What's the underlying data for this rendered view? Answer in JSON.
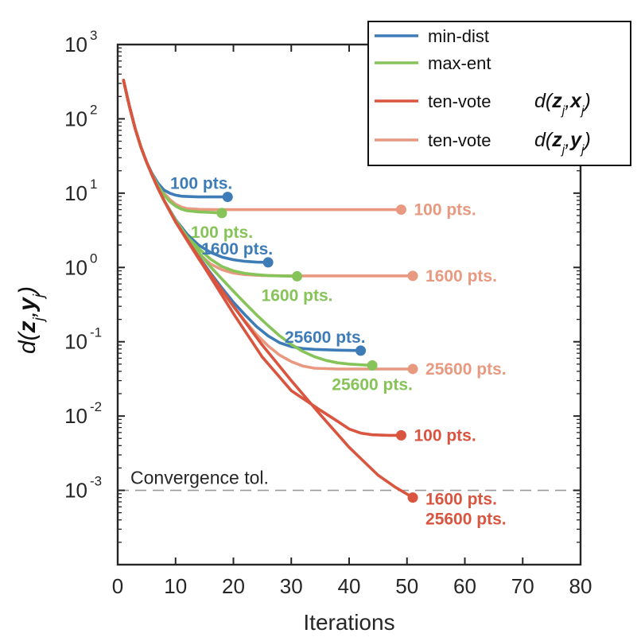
{
  "chart_data": {
    "type": "line",
    "xlabel": "Iterations",
    "ylabel": {
      "prefix": "d(",
      "var1": "z",
      "sub1": "j",
      "sep": ",",
      "var2": "y",
      "sub2": "j",
      "suffix": ")"
    },
    "xlim": [
      0,
      80
    ],
    "ylim_log10": [
      -4,
      3
    ],
    "yscale": "log",
    "xticks": [
      "0",
      "10",
      "20",
      "30",
      "40",
      "50",
      "60",
      "70",
      "80"
    ],
    "yticks": [
      {
        "base": "10",
        "exp": "3",
        "value": 3
      },
      {
        "base": "10",
        "exp": "2",
        "value": 2
      },
      {
        "base": "10",
        "exp": "1",
        "value": 1
      },
      {
        "base": "10",
        "exp": "0",
        "value": 0
      },
      {
        "base": "10",
        "exp": "-1",
        "value": -1
      },
      {
        "base": "10",
        "exp": "-2",
        "value": -2
      },
      {
        "base": "10",
        "exp": "-3",
        "value": -3
      }
    ],
    "convergence_tol": {
      "label": "Convergence tol.",
      "value": 0.001
    },
    "colors": {
      "min_dist": "#3E7CB8",
      "max_ent": "#86C358",
      "ten_vote_x": "#D9553F",
      "ten_vote_y": "#E89980",
      "axis": "#262626",
      "tol": "#999999"
    },
    "legend": {
      "position": "top-right",
      "entries": [
        {
          "label": "min-dist",
          "color_key": "min_dist"
        },
        {
          "label": "max-ent",
          "color_key": "max_ent"
        },
        {
          "label": "ten-vote",
          "color_key": "ten_vote_x",
          "math": {
            "prefix": "d(",
            "var1": "z",
            "sub1": "j",
            "sep": ",",
            "var2": "x",
            "sub2": "j",
            "suffix": ")"
          }
        },
        {
          "label": "ten-vote",
          "color_key": "ten_vote_y",
          "math": {
            "prefix": "d(",
            "var1": "z",
            "sub1": "j",
            "sep": ",",
            "var2": "y",
            "sub2": "j",
            "suffix": ")"
          }
        }
      ]
    },
    "series": [
      {
        "name": "min-dist 100 pts.",
        "color_key": "min_dist",
        "label": "100 pts.",
        "label_side": "above",
        "points": [
          [
            1,
            330
          ],
          [
            2,
            150
          ],
          [
            3,
            75
          ],
          [
            4,
            42
          ],
          [
            5,
            26
          ],
          [
            6,
            18
          ],
          [
            7,
            13.5
          ],
          [
            8,
            11
          ],
          [
            9,
            10
          ],
          [
            10,
            9.4
          ],
          [
            11,
            9.1
          ],
          [
            12,
            9
          ],
          [
            14,
            8.9
          ],
          [
            17,
            8.9
          ],
          [
            19,
            8.9
          ]
        ]
      },
      {
        "name": "max-ent 100 pts.",
        "color_key": "max_ent",
        "label": "100 pts.",
        "label_side": "below",
        "points": [
          [
            1,
            330
          ],
          [
            2,
            150
          ],
          [
            3,
            75
          ],
          [
            4,
            42
          ],
          [
            5,
            26
          ],
          [
            6,
            17.5
          ],
          [
            7,
            12.5
          ],
          [
            8,
            9.5
          ],
          [
            9,
            7.7
          ],
          [
            10,
            6.7
          ],
          [
            11,
            6.1
          ],
          [
            12,
            5.8
          ],
          [
            14,
            5.6
          ],
          [
            16,
            5.5
          ],
          [
            18,
            5.4
          ]
        ]
      },
      {
        "name": "ten-vote y 100 pts.",
        "color_key": "ten_vote_y",
        "label": "100 pts.",
        "label_side": "right",
        "points": [
          [
            1,
            330
          ],
          [
            2,
            150
          ],
          [
            3,
            75
          ],
          [
            4,
            42
          ],
          [
            5,
            26
          ],
          [
            6,
            17.5
          ],
          [
            7,
            13
          ],
          [
            8,
            10
          ],
          [
            9,
            8.2
          ],
          [
            10,
            7.1
          ],
          [
            11,
            6.5
          ],
          [
            12,
            6.2
          ],
          [
            14,
            6.05
          ],
          [
            17,
            6
          ],
          [
            25,
            6
          ],
          [
            35,
            6
          ],
          [
            45,
            6
          ],
          [
            49,
            6
          ]
        ]
      },
      {
        "name": "min-dist 1600 pts.",
        "color_key": "min_dist",
        "label": "1600 pts.",
        "label_side": "above",
        "points": [
          [
            1,
            330
          ],
          [
            2,
            150
          ],
          [
            3,
            75
          ],
          [
            4,
            42
          ],
          [
            5,
            26
          ],
          [
            6,
            17
          ],
          [
            7,
            11.5
          ],
          [
            8,
            8
          ],
          [
            10,
            4.4
          ],
          [
            12,
            2.8
          ],
          [
            14,
            2
          ],
          [
            16,
            1.6
          ],
          [
            18,
            1.38
          ],
          [
            20,
            1.27
          ],
          [
            22,
            1.21
          ],
          [
            24,
            1.18
          ],
          [
            26,
            1.17
          ]
        ]
      },
      {
        "name": "max-ent 1600 pts.",
        "color_key": "max_ent",
        "label": "1600 pts.",
        "label_side": "below",
        "points": [
          [
            1,
            330
          ],
          [
            2,
            150
          ],
          [
            3,
            75
          ],
          [
            4,
            42
          ],
          [
            5,
            26
          ],
          [
            6,
            17
          ],
          [
            7,
            11.5
          ],
          [
            8,
            8
          ],
          [
            10,
            4.3
          ],
          [
            12,
            2.6
          ],
          [
            14,
            1.8
          ],
          [
            16,
            1.3
          ],
          [
            18,
            1.03
          ],
          [
            20,
            0.9
          ],
          [
            22,
            0.83
          ],
          [
            24,
            0.8
          ],
          [
            26,
            0.78
          ],
          [
            28,
            0.77
          ],
          [
            31,
            0.76
          ]
        ]
      },
      {
        "name": "ten-vote y 1600 pts.",
        "color_key": "ten_vote_y",
        "label": "1600 pts.",
        "label_side": "right",
        "points": [
          [
            1,
            330
          ],
          [
            2,
            150
          ],
          [
            3,
            75
          ],
          [
            4,
            42
          ],
          [
            5,
            26
          ],
          [
            6,
            17
          ],
          [
            7,
            11.5
          ],
          [
            8,
            8
          ],
          [
            10,
            4.2
          ],
          [
            12,
            2.5
          ],
          [
            14,
            1.55
          ],
          [
            16,
            1.12
          ],
          [
            18,
            0.93
          ],
          [
            20,
            0.84
          ],
          [
            22,
            0.8
          ],
          [
            25,
            0.78
          ],
          [
            30,
            0.77
          ],
          [
            40,
            0.77
          ],
          [
            51,
            0.77
          ]
        ]
      },
      {
        "name": "min-dist 25600 pts.",
        "color_key": "min_dist",
        "label": "25600 pts.",
        "label_side": "above",
        "points": [
          [
            1,
            330
          ],
          [
            2,
            150
          ],
          [
            3,
            75
          ],
          [
            4,
            42
          ],
          [
            5,
            26
          ],
          [
            6,
            17
          ],
          [
            7,
            11.5
          ],
          [
            8,
            8
          ],
          [
            10,
            4.2
          ],
          [
            12,
            2.4
          ],
          [
            14,
            1.4
          ],
          [
            16,
            0.85
          ],
          [
            18,
            0.53
          ],
          [
            20,
            0.34
          ],
          [
            22,
            0.23
          ],
          [
            24,
            0.16
          ],
          [
            26,
            0.12
          ],
          [
            28,
            0.097
          ],
          [
            30,
            0.086
          ],
          [
            32,
            0.081
          ],
          [
            34,
            0.079
          ],
          [
            38,
            0.077
          ],
          [
            42,
            0.076
          ]
        ]
      },
      {
        "name": "max-ent 25600 pts.",
        "color_key": "max_ent",
        "label": "25600 pts.",
        "label_side": "below",
        "points": [
          [
            1,
            330
          ],
          [
            2,
            150
          ],
          [
            3,
            75
          ],
          [
            4,
            42
          ],
          [
            5,
            26
          ],
          [
            6,
            17
          ],
          [
            7,
            11.5
          ],
          [
            8,
            8
          ],
          [
            10,
            4.3
          ],
          [
            12,
            2.6
          ],
          [
            14,
            1.6
          ],
          [
            16,
            1.03
          ],
          [
            18,
            0.7
          ],
          [
            20,
            0.48
          ],
          [
            22,
            0.33
          ],
          [
            24,
            0.23
          ],
          [
            26,
            0.165
          ],
          [
            28,
            0.12
          ],
          [
            30,
            0.092
          ],
          [
            32,
            0.074
          ],
          [
            34,
            0.063
          ],
          [
            36,
            0.056
          ],
          [
            38,
            0.052
          ],
          [
            40,
            0.05
          ],
          [
            44,
            0.048
          ]
        ]
      },
      {
        "name": "ten-vote y 25600 pts.",
        "color_key": "ten_vote_y",
        "label": "25600 pts.",
        "label_side": "right",
        "points": [
          [
            1,
            330
          ],
          [
            2,
            150
          ],
          [
            3,
            75
          ],
          [
            4,
            42
          ],
          [
            5,
            26
          ],
          [
            6,
            17
          ],
          [
            7,
            11.5
          ],
          [
            8,
            8
          ],
          [
            10,
            4.1
          ],
          [
            12,
            2.3
          ],
          [
            14,
            1.3
          ],
          [
            16,
            0.78
          ],
          [
            18,
            0.48
          ],
          [
            20,
            0.3
          ],
          [
            22,
            0.19
          ],
          [
            24,
            0.125
          ],
          [
            26,
            0.088
          ],
          [
            28,
            0.066
          ],
          [
            30,
            0.054
          ],
          [
            32,
            0.047
          ],
          [
            34,
            0.044
          ],
          [
            38,
            0.043
          ],
          [
            45,
            0.043
          ],
          [
            51,
            0.043
          ]
        ]
      },
      {
        "name": "ten-vote x 100 pts.",
        "color_key": "ten_vote_x",
        "label": "100 pts.",
        "label_side": "right",
        "points": [
          [
            1,
            330
          ],
          [
            2,
            150
          ],
          [
            3,
            75
          ],
          [
            4,
            42
          ],
          [
            5,
            26
          ],
          [
            6,
            17
          ],
          [
            7,
            11.5
          ],
          [
            8,
            8
          ],
          [
            10,
            4.1
          ],
          [
            15,
            1
          ],
          [
            20,
            0.24
          ],
          [
            25,
            0.062
          ],
          [
            30,
            0.022
          ],
          [
            35,
            0.012
          ],
          [
            38,
            0.0085
          ],
          [
            40,
            0.0067
          ],
          [
            42,
            0.0059
          ],
          [
            44,
            0.0056
          ],
          [
            47,
            0.0055
          ],
          [
            49,
            0.0055
          ]
        ]
      },
      {
        "name": "ten-vote x 1600 pts.",
        "color_key": "ten_vote_x",
        "label": "1600 pts.",
        "label_side": "right",
        "label2": "25600 pts.",
        "points": [
          [
            1,
            330
          ],
          [
            2,
            150
          ],
          [
            3,
            75
          ],
          [
            4,
            42
          ],
          [
            5,
            26
          ],
          [
            6,
            17
          ],
          [
            7,
            11.5
          ],
          [
            8,
            8
          ],
          [
            10,
            4.1
          ],
          [
            15,
            1.05
          ],
          [
            20,
            0.3
          ],
          [
            25,
            0.09
          ],
          [
            30,
            0.03
          ],
          [
            35,
            0.0105
          ],
          [
            40,
            0.0038
          ],
          [
            45,
            0.0016
          ],
          [
            48,
            0.0011
          ],
          [
            51,
            0.0008
          ]
        ]
      }
    ]
  }
}
